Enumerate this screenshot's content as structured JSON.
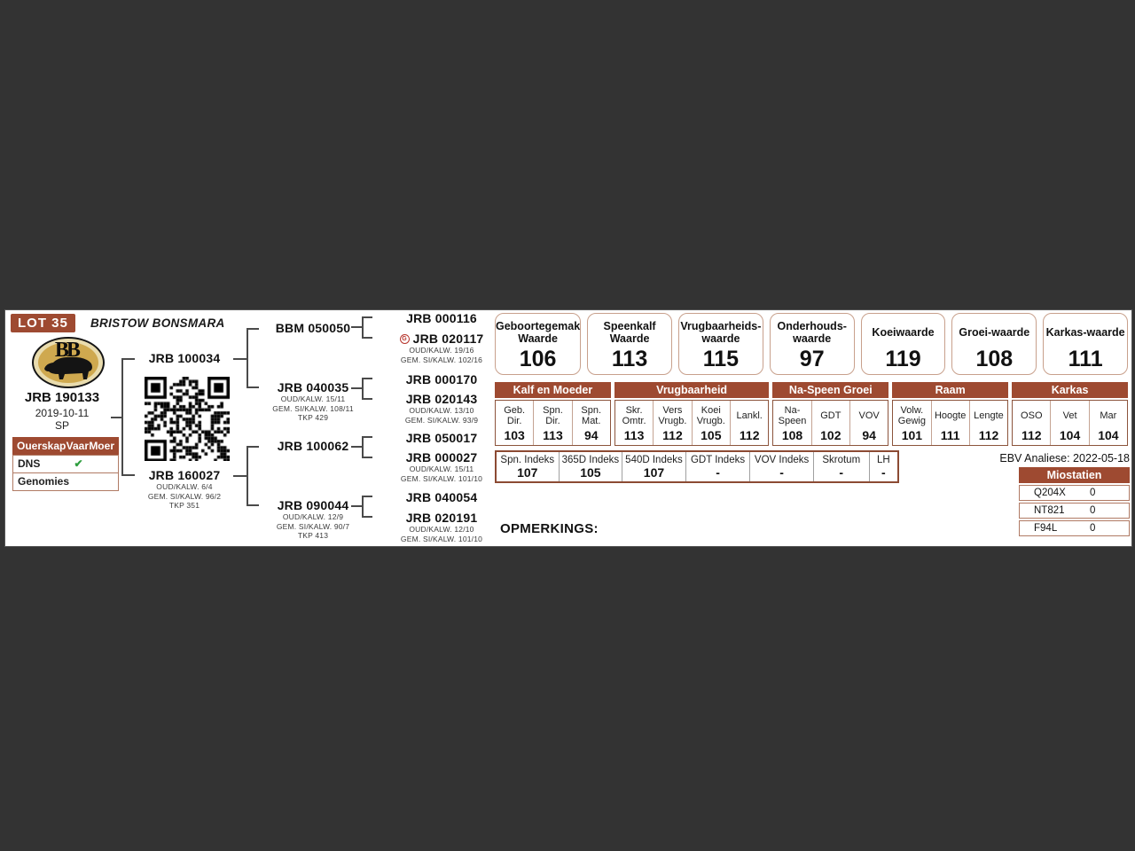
{
  "lot": {
    "label": "LOT 35"
  },
  "header": {
    "title": "BRISTOW BONSMARA"
  },
  "subject": {
    "id": "JRB 190133",
    "birth_date": "2019-10-11",
    "status": "SP"
  },
  "parentage": {
    "header": {
      "c1": "Ouerskap",
      "c2": "Vaar",
      "c3": "Moer"
    },
    "rows": [
      {
        "label": "DNS",
        "vaar": "✔"
      },
      {
        "label": "Genomies",
        "vaar": ""
      }
    ]
  },
  "icons": {
    "seal": "G",
    "check": "✔"
  },
  "pedigree": {
    "sire": {
      "id": "JRB 100034"
    },
    "dam": {
      "id": "JRB 160027",
      "details": [
        "OUD/KALW. 6/4",
        "GEM. SI/KALW. 96/2",
        "TKP 351"
      ]
    },
    "grandparents": [
      {
        "id": "BBM 050050"
      },
      {
        "id": "JRB 040035",
        "details": [
          "OUD/KALW. 15/11",
          "GEM. SI/KALW. 108/11",
          "TKP 429"
        ]
      },
      {
        "id": "JRB 100062"
      },
      {
        "id": "JRB 090044",
        "details": [
          "OUD/KALW. 12/9",
          "GEM. SI/KALW. 90/7",
          "TKP 413"
        ]
      }
    ],
    "great_grandparents": [
      {
        "id": "JRB 000116"
      },
      {
        "id": "JRB 020117",
        "details": [
          "OUD/KALW. 19/16",
          "GEM. SI/KALW. 102/16"
        ]
      },
      {
        "id": "JRB 000170"
      },
      {
        "id": "JRB 020143",
        "details": [
          "OUD/KALW. 13/10",
          "GEM. SI/KALW. 93/9"
        ]
      },
      {
        "id": "JRB 050017"
      },
      {
        "id": "JRB 000027",
        "details": [
          "OUD/KALW. 15/11",
          "GEM. SI/KALW. 101/10"
        ]
      },
      {
        "id": "JRB 040054"
      },
      {
        "id": "JRB 020191",
        "details": [
          "OUD/KALW. 12/10",
          "GEM. SI/KALW. 101/10"
        ]
      }
    ]
  },
  "value_boxes": [
    {
      "label": "Geboortegemak Waarde",
      "value": "106"
    },
    {
      "label": "Speenkalf Waarde",
      "value": "113"
    },
    {
      "label": "Vrugbaarheids-waarde",
      "value": "115"
    },
    {
      "label": "Onderhouds-waarde",
      "value": "97"
    },
    {
      "label": "Koeiwaarde",
      "value": "119"
    },
    {
      "label": "Groei-waarde",
      "value": "108"
    },
    {
      "label": "Karkas-waarde",
      "value": "111"
    }
  ],
  "ebv_table": {
    "groups": [
      {
        "name": "Kalf en Moeder",
        "columns": [
          {
            "label": "Geb. Dir.",
            "value": "103"
          },
          {
            "label": "Spn. Dir.",
            "value": "113"
          },
          {
            "label": "Spn. Mat.",
            "value": "94"
          }
        ]
      },
      {
        "name": "Vrugbaarheid",
        "columns": [
          {
            "label": "Skr. Omtr.",
            "value": "113"
          },
          {
            "label": "Vers Vrugb.",
            "value": "112"
          },
          {
            "label": "Koei Vrugb.",
            "value": "105"
          },
          {
            "label": "Lankl.",
            "value": "112"
          }
        ]
      },
      {
        "name": "Na-Speen Groei",
        "columns": [
          {
            "label": "Na-Speen",
            "value": "108"
          },
          {
            "label": "GDT",
            "value": "102"
          },
          {
            "label": "VOV",
            "value": "94"
          }
        ]
      },
      {
        "name": "Raam",
        "columns": [
          {
            "label": "Volw. Gewig",
            "value": "101"
          },
          {
            "label": "Hoogte",
            "value": "111"
          },
          {
            "label": "Lengte",
            "value": "112"
          }
        ]
      },
      {
        "name": "Karkas",
        "columns": [
          {
            "label": "OSO",
            "value": "112"
          },
          {
            "label": "Vet",
            "value": "104"
          },
          {
            "label": "Mar",
            "value": "104"
          }
        ]
      }
    ]
  },
  "index_table": {
    "cells": [
      {
        "label": "Spn. Indeks",
        "value": "107"
      },
      {
        "label": "365D Indeks",
        "value": "105"
      },
      {
        "label": "540D Indeks",
        "value": "107"
      },
      {
        "label": "GDT Indeks",
        "value": "-"
      },
      {
        "label": "VOV Indeks",
        "value": "-"
      },
      {
        "label": "Skrotum",
        "value": "-"
      },
      {
        "label": "LH",
        "value": "-"
      }
    ]
  },
  "analysis": {
    "label": "EBV Analiese: 2022-05-18"
  },
  "miostatien": {
    "title": "Miostatien",
    "rows": [
      {
        "gene": "Q204X",
        "value": "0"
      },
      {
        "gene": "NT821",
        "value": "0"
      },
      {
        "gene": "F94L",
        "value": "0"
      }
    ]
  },
  "remarks": {
    "label": "OPMERKINGS:"
  },
  "colors": {
    "accent": "#9e4a31",
    "check_green": "#2f9e3f",
    "background": "#333333",
    "box_border": "#c8a08c"
  }
}
